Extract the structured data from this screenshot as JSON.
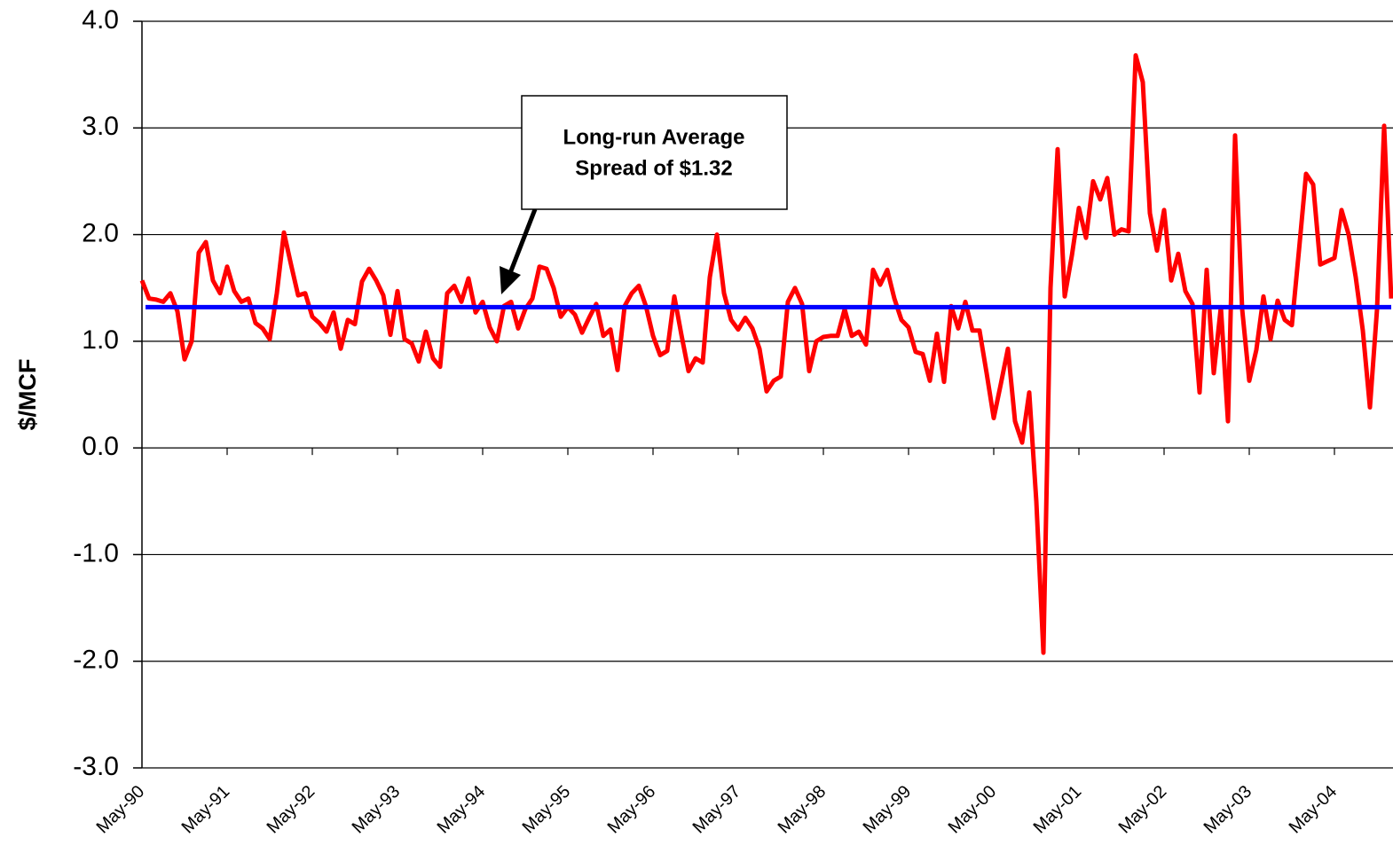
{
  "chart_data": {
    "type": "line",
    "y_label": "$/MCF",
    "annotation": [
      "Long-run Average",
      "Spread of $1.32"
    ],
    "average": {
      "value": 1.32,
      "color": "#0000ff"
    },
    "categories": [
      "May-90",
      null,
      null,
      null,
      null,
      null,
      null,
      null,
      null,
      null,
      null,
      null,
      "May-91",
      null,
      null,
      null,
      null,
      null,
      null,
      null,
      null,
      null,
      null,
      null,
      "May-92",
      null,
      null,
      null,
      null,
      null,
      null,
      null,
      null,
      null,
      null,
      null,
      "May-93",
      null,
      null,
      null,
      null,
      null,
      null,
      null,
      null,
      null,
      null,
      null,
      "May-94",
      null,
      null,
      null,
      null,
      null,
      null,
      null,
      null,
      null,
      null,
      null,
      "May-95",
      null,
      null,
      null,
      null,
      null,
      null,
      null,
      null,
      null,
      null,
      null,
      "May-96",
      null,
      null,
      null,
      null,
      null,
      null,
      null,
      null,
      null,
      null,
      null,
      "May-97",
      null,
      null,
      null,
      null,
      null,
      null,
      null,
      null,
      null,
      null,
      null,
      "May-98",
      null,
      null,
      null,
      null,
      null,
      null,
      null,
      null,
      null,
      null,
      null,
      "May-99",
      null,
      null,
      null,
      null,
      null,
      null,
      null,
      null,
      null,
      null,
      null,
      "May-00",
      null,
      null,
      null,
      null,
      null,
      null,
      null,
      null,
      null,
      null,
      null,
      "May-01",
      null,
      null,
      null,
      null,
      null,
      null,
      null,
      null,
      null,
      null,
      null,
      "May-02",
      null,
      null,
      null,
      null,
      null,
      null,
      null,
      null,
      null,
      null,
      null,
      "May-03",
      null,
      null,
      null,
      null,
      null,
      null,
      null,
      null,
      null,
      null,
      null,
      "May-04",
      null,
      null,
      null,
      null,
      null,
      null,
      null,
      null
    ],
    "series": [
      {
        "color": "#ff0000",
        "values": [
          1.57,
          1.4,
          1.39,
          1.37,
          1.45,
          1.28,
          0.83,
          1.0,
          1.83,
          1.93,
          1.57,
          1.45,
          1.7,
          1.47,
          1.37,
          1.4,
          1.17,
          1.12,
          1.02,
          1.45,
          2.02,
          1.72,
          1.43,
          1.45,
          1.23,
          1.17,
          1.09,
          1.27,
          0.93,
          1.2,
          1.16,
          1.56,
          1.68,
          1.57,
          1.43,
          1.06,
          1.47,
          1.02,
          0.98,
          0.81,
          1.09,
          0.84,
          0.76,
          1.45,
          1.52,
          1.37,
          1.59,
          1.27,
          1.37,
          1.13,
          1.0,
          1.33,
          1.37,
          1.12,
          1.3,
          1.4,
          1.7,
          1.68,
          1.5,
          1.23,
          1.32,
          1.25,
          1.08,
          1.22,
          1.35,
          1.05,
          1.11,
          0.73,
          1.33,
          1.45,
          1.52,
          1.33,
          1.05,
          0.87,
          0.91,
          1.42,
          1.06,
          0.72,
          0.84,
          0.8,
          1.6,
          2.0,
          1.45,
          1.2,
          1.11,
          1.22,
          1.12,
          0.93,
          0.53,
          0.63,
          0.67,
          1.37,
          1.5,
          1.35,
          0.72,
          1.0,
          1.04,
          1.05,
          1.05,
          1.3,
          1.05,
          1.09,
          0.97,
          1.67,
          1.53,
          1.67,
          1.4,
          1.2,
          1.13,
          0.9,
          0.88,
          0.63,
          1.07,
          0.62,
          1.33,
          1.12,
          1.37,
          1.1,
          1.1,
          0.7,
          0.28,
          0.6,
          0.93,
          0.25,
          0.05,
          0.52,
          -0.5,
          -1.92,
          1.5,
          2.8,
          1.42,
          1.8,
          2.25,
          1.97,
          2.5,
          2.33,
          2.53,
          2.0,
          2.05,
          2.03,
          3.68,
          3.43,
          2.2,
          1.85,
          2.23,
          1.57,
          1.82,
          1.47,
          1.35,
          0.52,
          1.67,
          0.7,
          1.32,
          0.25,
          2.93,
          1.3,
          0.63,
          0.92,
          1.42,
          1.02,
          1.38,
          1.2,
          1.15,
          1.85,
          2.57,
          2.47,
          1.72,
          1.75,
          1.78,
          2.23,
          2.0,
          1.6,
          1.1,
          0.38,
          1.3,
          3.02,
          1.4
        ]
      }
    ],
    "ylim": [
      -3,
      4
    ],
    "yticks": [
      {
        "value": 4,
        "label": "4.0"
      },
      {
        "value": 3,
        "label": "3.0"
      },
      {
        "value": 2,
        "label": "2.0"
      },
      {
        "value": 1,
        "label": "1.0"
      },
      {
        "value": 0,
        "label": "0.0"
      },
      {
        "value": -1,
        "label": "-1.0"
      },
      {
        "value": -2,
        "label": "-2.0"
      },
      {
        "value": -3,
        "label": "-3.0"
      }
    ],
    "grid": true
  }
}
